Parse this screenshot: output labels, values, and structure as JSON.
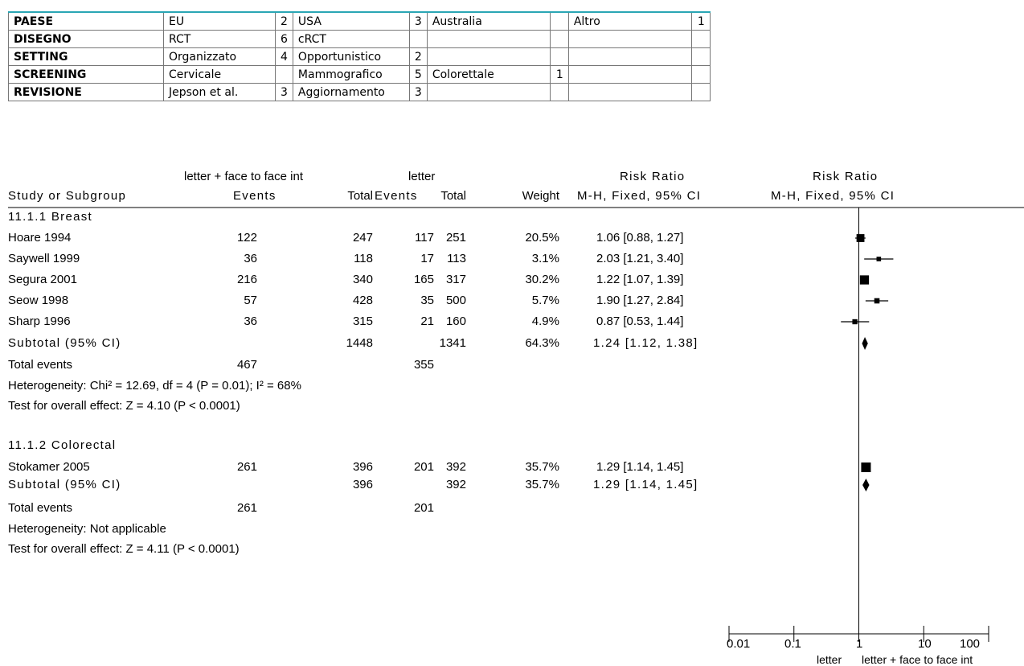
{
  "summary_table": {
    "rows": [
      {
        "header": "PAESE",
        "cells": [
          [
            "EU",
            "2"
          ],
          [
            "USA",
            "3"
          ],
          [
            "Australia",
            ""
          ],
          [
            "Altro",
            "1"
          ]
        ]
      },
      {
        "header": "DISEGNO",
        "cells": [
          [
            "RCT",
            "6"
          ],
          [
            "cRCT",
            ""
          ],
          [
            "",
            ""
          ],
          [
            "",
            ""
          ]
        ]
      },
      {
        "header": "SETTING",
        "cells": [
          [
            "Organizzato",
            "4"
          ],
          [
            "Opportunistico",
            "2"
          ],
          [
            "",
            ""
          ],
          [
            "",
            ""
          ]
        ]
      },
      {
        "header": "SCREENING",
        "cells": [
          [
            "Cervicale",
            ""
          ],
          [
            "Mammografico",
            "5"
          ],
          [
            "Colorettale",
            "1"
          ],
          [
            "",
            ""
          ]
        ]
      },
      {
        "header": "REVISIONE",
        "cells": [
          [
            "Jepson et al.",
            "3"
          ],
          [
            "Aggiornamento",
            "3"
          ],
          [
            "",
            ""
          ],
          [
            "",
            ""
          ]
        ]
      }
    ]
  },
  "forest": {
    "header": {
      "group1": "letter + face to face int",
      "group2": "letter",
      "rr_text": "Risk Ratio",
      "rr_plot": "Risk Ratio",
      "study_col": "Study or Subgroup",
      "events1": "Events",
      "total1": "Total",
      "events2": "Events",
      "total2": "Total",
      "weight": "Weight",
      "method_text": "M-H, Fixed, 95% CI",
      "method_plot": "M-H, Fixed, 95% CI"
    },
    "subgroups": [
      {
        "title": "11.1.1 Breast",
        "studies": [
          {
            "name": "Hoare 1994",
            "e1": "122",
            "t1": "247",
            "e2": "117",
            "t2": "251",
            "w": "20.5%",
            "ci": "1.06 [0.88, 1.27]"
          },
          {
            "name": "Saywell 1999",
            "e1": "36",
            "t1": "118",
            "e2": "17",
            "t2": "113",
            "w": "3.1%",
            "ci": "2.03 [1.21, 3.40]"
          },
          {
            "name": "Segura 2001",
            "e1": "216",
            "t1": "340",
            "e2": "165",
            "t2": "317",
            "w": "30.2%",
            "ci": "1.22 [1.07, 1.39]"
          },
          {
            "name": "Seow 1998",
            "e1": "57",
            "t1": "428",
            "e2": "35",
            "t2": "500",
            "w": "5.7%",
            "ci": "1.90 [1.27, 2.84]"
          },
          {
            "name": "Sharp 1996",
            "e1": "36",
            "t1": "315",
            "e2": "21",
            "t2": "160",
            "w": "4.9%",
            "ci": "0.87 [0.53, 1.44]"
          }
        ],
        "subtotal": {
          "label": "Subtotal (95% CI)",
          "t1": "1448",
          "t2": "1341",
          "w": "64.3%",
          "ci": "1.24 [1.12, 1.38]"
        },
        "total_events": {
          "label": "Total events",
          "e1": "467",
          "e2": "355"
        },
        "heterogeneity": "Heterogeneity: Chi² = 12.69, df = 4 (P = 0.01); I² = 68%",
        "overall": "Test for overall effect: Z = 4.10 (P < 0.0001)"
      },
      {
        "title": "11.1.2 Colorectal",
        "studies": [
          {
            "name": "Stokamer 2005",
            "e1": "261",
            "t1": "396",
            "e2": "201",
            "t2": "392",
            "w": "35.7%",
            "ci": "1.29 [1.14, 1.45]"
          }
        ],
        "subtotal": {
          "label": "Subtotal (95% CI)",
          "t1": "396",
          "t2": "392",
          "w": "35.7%",
          "ci": "1.29 [1.14, 1.45]"
        },
        "total_events": {
          "label": "Total events",
          "e1": "261",
          "e2": "201"
        },
        "heterogeneity": "Heterogeneity: Not applicable",
        "overall": "Test for overall effect: Z = 4.11 (P < 0.0001)"
      }
    ],
    "axis": {
      "ticks": [
        "0.01",
        "0.1",
        "1",
        "10",
        "100"
      ],
      "favours_left": "letter",
      "favours_right": "letter + face to face int"
    }
  },
  "chart_data": {
    "type": "forest",
    "xscale": "log",
    "xlim": [
      0.01,
      100
    ],
    "xticks": [
      0.01,
      0.1,
      1,
      10,
      100
    ],
    "reference_line": 1,
    "series": [
      {
        "study": "Hoare 1994",
        "rr": 1.06,
        "lo": 0.88,
        "hi": 1.27,
        "weight": 20.5
      },
      {
        "study": "Saywell 1999",
        "rr": 2.03,
        "lo": 1.21,
        "hi": 3.4,
        "weight": 3.1
      },
      {
        "study": "Segura 2001",
        "rr": 1.22,
        "lo": 1.07,
        "hi": 1.39,
        "weight": 30.2
      },
      {
        "study": "Seow 1998",
        "rr": 1.9,
        "lo": 1.27,
        "hi": 2.84,
        "weight": 5.7
      },
      {
        "study": "Sharp 1996",
        "rr": 0.87,
        "lo": 0.53,
        "hi": 1.44,
        "weight": 4.9
      },
      {
        "study": "Subtotal Breast",
        "rr": 1.24,
        "lo": 1.12,
        "hi": 1.38,
        "weight": 64.3,
        "diamond": true
      },
      {
        "study": "Stokamer 2005",
        "rr": 1.29,
        "lo": 1.14,
        "hi": 1.45,
        "weight": 35.7
      },
      {
        "study": "Subtotal Colorectal",
        "rr": 1.29,
        "lo": 1.14,
        "hi": 1.45,
        "weight": 35.7,
        "diamond": true
      }
    ],
    "favours_left": "letter",
    "favours_right": "letter + face to face int"
  }
}
